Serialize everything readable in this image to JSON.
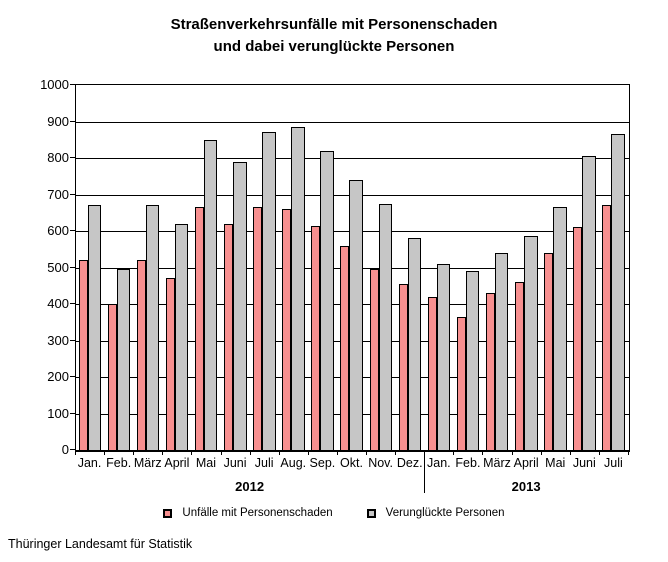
{
  "title": {
    "line1": "Straßenverkehrsunfälle mit Personenschaden",
    "line2": "und dabei verunglückte Personen"
  },
  "footer": {
    "source": "Thüringer Landesamt für Statistik"
  },
  "chart_data": {
    "type": "bar",
    "title": "Straßenverkehrsunfälle mit Personenschaden und dabei verunglückte Personen",
    "categories": [
      "Jan.",
      "Feb.",
      "März",
      "April",
      "Mai",
      "Juni",
      "Juli",
      "Aug.",
      "Sep.",
      "Okt.",
      "Nov.",
      "Dez.",
      "Jan.",
      "Feb.",
      "März",
      "April",
      "Mai",
      "Juni",
      "Juli"
    ],
    "year_groups": [
      {
        "label": "2012",
        "start": 0,
        "count": 12
      },
      {
        "label": "2013",
        "start": 12,
        "count": 7
      }
    ],
    "series": [
      {
        "name": "Unfälle mit Personenschaden",
        "color": "#f79090",
        "values": [
          520,
          400,
          520,
          470,
          665,
          620,
          665,
          660,
          615,
          560,
          495,
          455,
          420,
          365,
          430,
          460,
          540,
          610,
          670
        ]
      },
      {
        "name": "Verunglückte Personen",
        "color": "#c6c6c6",
        "values": [
          670,
          495,
          670,
          620,
          850,
          790,
          870,
          885,
          820,
          740,
          675,
          580,
          510,
          490,
          540,
          585,
          665,
          805,
          865
        ]
      }
    ],
    "ylim": [
      0,
      1000
    ],
    "ytick_interval": 100,
    "grid": true,
    "legend_position": "bottom",
    "gridline_color": "#000000",
    "axis_color": "#000000"
  }
}
